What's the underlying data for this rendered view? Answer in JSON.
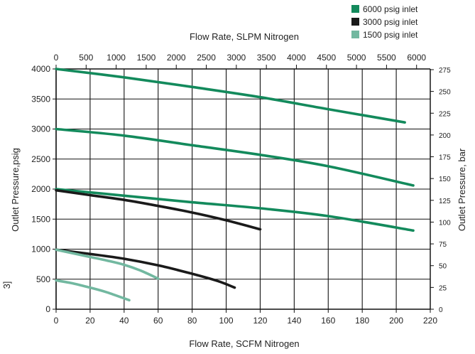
{
  "chart_data": {
    "type": "line",
    "title": "",
    "xlabel": "Flow Rate, SCFM Nitrogen",
    "x2label": "Flow Rate, SLPM Nitrogen",
    "ylabel": "Outlet Pressure,psig",
    "y2label": "Outlet Pressure, bar",
    "xlim": [
      0,
      220
    ],
    "x2lim": [
      0,
      6228
    ],
    "ylim": [
      0,
      4000
    ],
    "y2lim": [
      0,
      275.8
    ],
    "x_ticks": [
      "0",
      "20",
      "40",
      "60",
      "80",
      "100",
      "120",
      "140",
      "160",
      "180",
      "200",
      "220"
    ],
    "x2_ticks": [
      "0",
      "500",
      "1000",
      "1500",
      "2000",
      "2500",
      "3000",
      "3500",
      "4000",
      "4500",
      "5000",
      "5500",
      "6000"
    ],
    "y_ticks": [
      "0",
      "500",
      "1000",
      "1500",
      "2000",
      "2500",
      "3000",
      "3500",
      "4000"
    ],
    "y2_ticks": [
      "0",
      "25",
      "50",
      "75",
      "100",
      "125",
      "150",
      "175",
      "200",
      "225",
      "250",
      "275"
    ],
    "grid": true,
    "legend_position": "top-right",
    "legend": [
      {
        "label": "6000 psig inlet",
        "color": "#138a5c"
      },
      {
        "label": "3000 psig inlet",
        "color": "#1a1a1a"
      },
      {
        "label": "1500 psig inlet",
        "color": "#72b8a0"
      }
    ],
    "series": [
      {
        "name": "6000 psig inlet",
        "color": "#138a5c",
        "x": [
          0,
          40,
          80,
          120,
          160,
          205
        ],
        "y": [
          4000,
          3860,
          3700,
          3530,
          3330,
          3110
        ]
      },
      {
        "name": "6000 psig inlet",
        "color": "#138a5c",
        "x": [
          0,
          40,
          80,
          120,
          160,
          210
        ],
        "y": [
          3000,
          2890,
          2730,
          2570,
          2380,
          2060
        ]
      },
      {
        "name": "6000 psig inlet",
        "color": "#138a5c",
        "x": [
          0,
          40,
          80,
          120,
          160,
          210
        ],
        "y": [
          2000,
          1890,
          1780,
          1680,
          1550,
          1310
        ]
      },
      {
        "name": "3000 psig inlet",
        "color": "#1a1a1a",
        "x": [
          0,
          20,
          40,
          60,
          80,
          100,
          120
        ],
        "y": [
          1980,
          1900,
          1820,
          1720,
          1610,
          1480,
          1330
        ]
      },
      {
        "name": "3000 psig inlet",
        "color": "#1a1a1a",
        "x": [
          0,
          20,
          40,
          60,
          80,
          95,
          105
        ],
        "y": [
          990,
          920,
          840,
          730,
          590,
          470,
          360
        ]
      },
      {
        "name": "1500 psig inlet",
        "color": "#72b8a0",
        "x": [
          0,
          10,
          20,
          30,
          40,
          50,
          60
        ],
        "y": [
          990,
          930,
          870,
          810,
          740,
          640,
          510
        ]
      },
      {
        "name": "1500 psig inlet",
        "color": "#72b8a0",
        "x": [
          0,
          10,
          20,
          30,
          43
        ],
        "y": [
          480,
          430,
          360,
          280,
          150
        ]
      }
    ],
    "left_fragment": "3]"
  }
}
